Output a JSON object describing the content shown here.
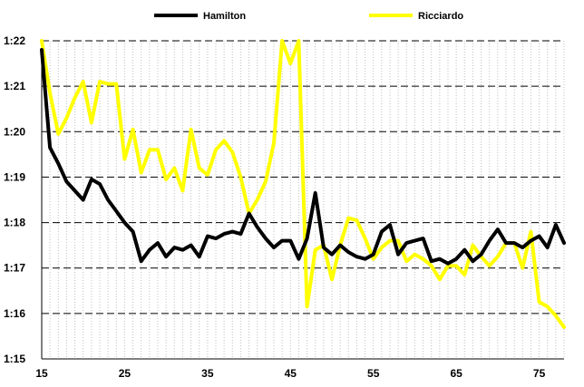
{
  "chart_data": {
    "type": "line",
    "title": "",
    "xlabel": "",
    "ylabel": "",
    "xlim": [
      15,
      78
    ],
    "ylim": [
      75,
      82
    ],
    "x_ticks": [
      15,
      25,
      35,
      45,
      55,
      65,
      75
    ],
    "y_ticks": [
      {
        "value": 75,
        "label": "1:15"
      },
      {
        "value": 76,
        "label": "1:16"
      },
      {
        "value": 77,
        "label": "1:17"
      },
      {
        "value": 78,
        "label": "1:18"
      },
      {
        "value": 79,
        "label": "1:19"
      },
      {
        "value": 80,
        "label": "1:20"
      },
      {
        "value": 81,
        "label": "1:21"
      },
      {
        "value": 82,
        "label": "1:22"
      }
    ],
    "grid": {
      "horizontal": "dashed",
      "vertical": "dotted"
    },
    "legend": {
      "placement": "top"
    },
    "series": [
      {
        "name": "Hamilton",
        "color": "#000000",
        "x": [
          15,
          16,
          17,
          18,
          19,
          20,
          21,
          22,
          23,
          24,
          25,
          26,
          27,
          28,
          29,
          30,
          31,
          32,
          33,
          34,
          35,
          36,
          37,
          38,
          39,
          40,
          41,
          42,
          43,
          44,
          45,
          46,
          47,
          48,
          49,
          50,
          51,
          52,
          53,
          54,
          55,
          56,
          57,
          58,
          59,
          60,
          61,
          62,
          63,
          64,
          65,
          66,
          67,
          68,
          69,
          70,
          71,
          72,
          73,
          74,
          75,
          76,
          77,
          78
        ],
        "values": [
          81.8,
          79.65,
          79.3,
          78.9,
          78.7,
          78.5,
          78.95,
          78.85,
          78.5,
          78.25,
          78.0,
          77.8,
          77.15,
          77.4,
          77.55,
          77.25,
          77.45,
          77.4,
          77.5,
          77.25,
          77.7,
          77.65,
          77.75,
          77.8,
          77.75,
          78.2,
          77.9,
          77.65,
          77.45,
          77.6,
          77.6,
          77.2,
          77.65,
          78.65,
          77.45,
          77.3,
          77.5,
          77.35,
          77.25,
          77.2,
          77.3,
          77.8,
          77.95,
          77.3,
          77.55,
          77.6,
          77.65,
          77.15,
          77.2,
          77.1,
          77.2,
          77.4,
          77.15,
          77.3,
          77.6,
          77.85,
          77.55,
          77.55,
          77.45,
          77.6,
          77.7,
          77.45,
          77.95,
          77.55
        ]
      },
      {
        "name": "Ricciardo",
        "color": "#ffff00",
        "x": [
          15,
          16,
          17,
          18,
          19,
          20,
          21,
          22,
          23,
          24,
          25,
          26,
          27,
          28,
          29,
          30,
          31,
          32,
          33,
          34,
          35,
          36,
          37,
          38,
          39,
          40,
          41,
          42,
          43,
          44,
          45,
          46,
          47,
          48,
          49,
          50,
          51,
          52,
          53,
          54,
          55,
          56,
          57,
          58,
          59,
          60,
          61,
          62,
          63,
          64,
          65,
          66,
          67,
          68,
          69,
          70,
          71,
          72,
          73,
          74,
          75,
          76,
          77,
          78
        ],
        "values": [
          82.0,
          80.85,
          79.95,
          80.3,
          80.75,
          81.1,
          80.2,
          81.1,
          81.05,
          81.05,
          79.4,
          80.05,
          79.1,
          79.6,
          79.6,
          78.95,
          79.2,
          78.7,
          80.05,
          79.2,
          79.05,
          79.6,
          79.8,
          79.55,
          79.0,
          78.2,
          78.5,
          78.9,
          79.75,
          82.0,
          81.5,
          82.0,
          76.15,
          77.4,
          77.5,
          76.75,
          77.5,
          78.1,
          78.05,
          77.65,
          77.2,
          77.45,
          77.6,
          77.6,
          77.15,
          77.3,
          77.2,
          77.05,
          76.75,
          77.05,
          77.05,
          76.85,
          77.5,
          77.25,
          77.05,
          77.25,
          77.55,
          77.55,
          77.0,
          77.8,
          76.25,
          76.15,
          75.95,
          75.7
        ]
      }
    ]
  }
}
